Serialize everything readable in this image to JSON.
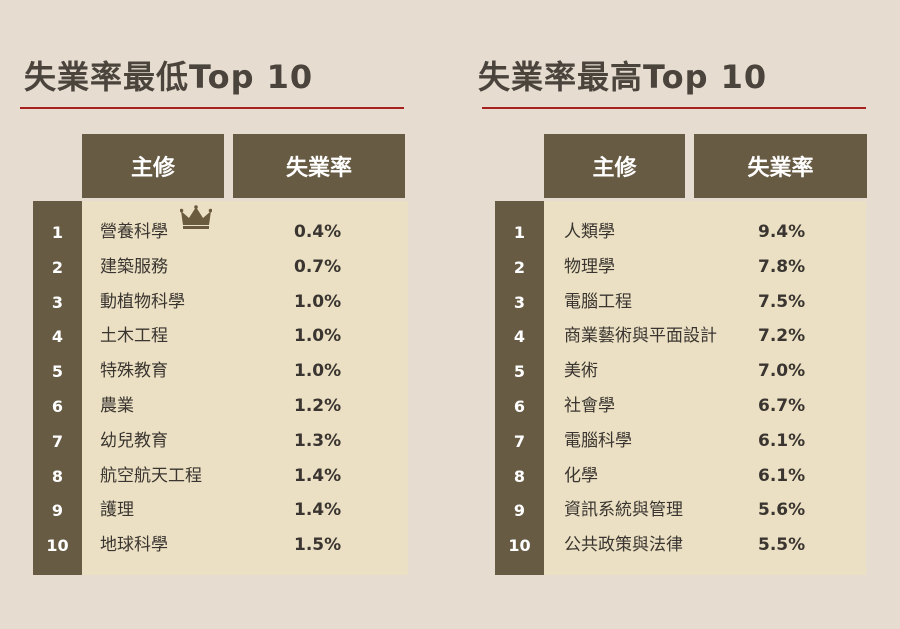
{
  "left": {
    "title": "失業率最低Top 10",
    "header_major": "主修",
    "header_rate": "失業率",
    "rows": [
      {
        "rank": "1",
        "major": "營養科學",
        "rate": "0.4%"
      },
      {
        "rank": "2",
        "major": "建築服務",
        "rate": "0.7%"
      },
      {
        "rank": "3",
        "major": "動植物科學",
        "rate": "1.0%"
      },
      {
        "rank": "4",
        "major": "土木工程",
        "rate": "1.0%"
      },
      {
        "rank": "5",
        "major": "特殊教育",
        "rate": "1.0%"
      },
      {
        "rank": "6",
        "major": "農業",
        "rate": "1.2%"
      },
      {
        "rank": "7",
        "major": "幼兒教育",
        "rate": "1.3%"
      },
      {
        "rank": "8",
        "major": "航空航天工程",
        "rate": "1.4%"
      },
      {
        "rank": "9",
        "major": "護理",
        "rate": "1.4%"
      },
      {
        "rank": "10",
        "major": "地球科學",
        "rate": "1.5%"
      }
    ]
  },
  "right": {
    "title": "失業率最高Top 10",
    "header_major": "主修",
    "header_rate": "失業率",
    "rows": [
      {
        "rank": "1",
        "major": "人類學",
        "rate": "9.4%"
      },
      {
        "rank": "2",
        "major": "物理學",
        "rate": "7.8%"
      },
      {
        "rank": "3",
        "major": "電腦工程",
        "rate": "7.5%"
      },
      {
        "rank": "4",
        "major": "商業藝術與平面設計",
        "rate": "7.2%"
      },
      {
        "rank": "5",
        "major": "美術",
        "rate": "7.0%"
      },
      {
        "rank": "6",
        "major": "社會學",
        "rate": "6.7%"
      },
      {
        "rank": "7",
        "major": "電腦科學",
        "rate": "6.1%"
      },
      {
        "rank": "8",
        "major": "化學",
        "rate": "6.1%"
      },
      {
        "rank": "9",
        "major": "資訊系統與管理",
        "rate": "5.6%"
      },
      {
        "rank": "10",
        "major": "公共政策與法律",
        "rate": "5.5%"
      }
    ]
  },
  "colors": {
    "background": "#e6dccf",
    "header": "#685b44",
    "table_body": "#ebe0c3",
    "title_rule": "#a8201f",
    "title_text": "#4a443d"
  },
  "icons": {
    "crown": "crown-icon"
  }
}
